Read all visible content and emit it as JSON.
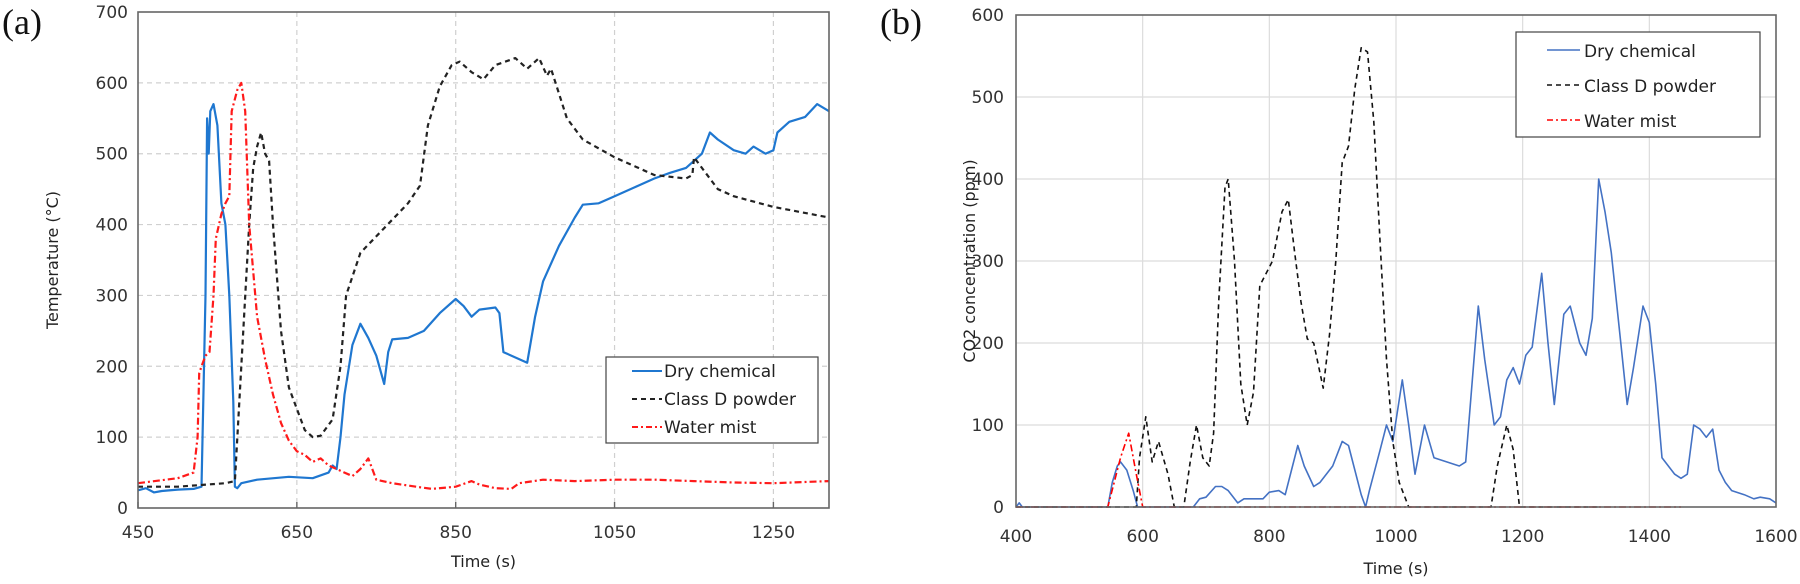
{
  "chart_data": [
    {
      "panel_label": "(a)",
      "type": "line",
      "title": "",
      "xlabel": "Time (s)",
      "ylabel": "Temperature (°C)",
      "xlim": [
        450,
        1320
      ],
      "ylim": [
        0,
        700
      ],
      "xticks": [
        450,
        650,
        850,
        1050,
        1250
      ],
      "yticks": [
        0,
        100,
        200,
        300,
        400,
        500,
        600,
        700
      ],
      "xtick_labels": [
        "450",
        "650",
        "850",
        "1050",
        "1250"
      ],
      "ytick_labels": [
        "0",
        "100",
        "200",
        "300",
        "400",
        "500",
        "600",
        "700"
      ],
      "grid": "dashed",
      "legend_position": "lower-right",
      "series": [
        {
          "name": "Dry chemical",
          "color": "#1f77d0",
          "style": "solid",
          "x": [
            450,
            460,
            470,
            480,
            500,
            520,
            530,
            535,
            537,
            539,
            541,
            545,
            550,
            555,
            560,
            565,
            570,
            572,
            575,
            580,
            600,
            640,
            670,
            690,
            695,
            700,
            705,
            710,
            720,
            730,
            740,
            750,
            760,
            765,
            770,
            790,
            810,
            830,
            850,
            860,
            870,
            880,
            900,
            905,
            910,
            940,
            950,
            960,
            980,
            1000,
            1010,
            1030,
            1050,
            1080,
            1100,
            1120,
            1140,
            1150,
            1160,
            1170,
            1180,
            1200,
            1215,
            1225,
            1240,
            1250,
            1255,
            1270,
            1290,
            1305,
            1320
          ],
          "y": [
            25,
            28,
            22,
            24,
            26,
            27,
            30,
            300,
            550,
            500,
            560,
            570,
            540,
            430,
            400,
            300,
            150,
            30,
            28,
            35,
            40,
            44,
            42,
            50,
            60,
            55,
            100,
            160,
            230,
            260,
            240,
            215,
            175,
            220,
            238,
            240,
            250,
            275,
            295,
            285,
            270,
            280,
            283,
            275,
            220,
            205,
            270,
            320,
            370,
            410,
            428,
            430,
            440,
            455,
            465,
            473,
            480,
            490,
            500,
            530,
            520,
            505,
            500,
            510,
            500,
            505,
            530,
            545,
            552,
            570,
            560
          ]
        },
        {
          "name": "Class D powder",
          "color": "#222222",
          "style": "dashed",
          "x": [
            450,
            500,
            560,
            572,
            580,
            590,
            595,
            600,
            605,
            610,
            615,
            620,
            630,
            640,
            660,
            670,
            680,
            695,
            705,
            712,
            730,
            760,
            790,
            805,
            815,
            830,
            845,
            855,
            870,
            885,
            900,
            925,
            940,
            955,
            965,
            970,
            990,
            1010,
            1050,
            1100,
            1140,
            1148,
            1150,
            1160,
            1180,
            1200,
            1250,
            1320
          ],
          "y": [
            30,
            30,
            35,
            38,
            200,
            400,
            480,
            510,
            530,
            500,
            490,
            400,
            250,
            170,
            110,
            100,
            102,
            125,
            200,
            300,
            360,
            395,
            430,
            455,
            540,
            595,
            625,
            630,
            615,
            605,
            625,
            635,
            620,
            635,
            610,
            620,
            550,
            520,
            495,
            470,
            465,
            470,
            495,
            480,
            450,
            440,
            425,
            410
          ]
        },
        {
          "name": "Water mist",
          "color": "#ff1a1a",
          "style": "dash-dot",
          "x": [
            450,
            500,
            520,
            525,
            527,
            530,
            535,
            540,
            545,
            548,
            551,
            555,
            560,
            565,
            568,
            575,
            580,
            585,
            590,
            600,
            610,
            620,
            630,
            640,
            650,
            660,
            670,
            680,
            690,
            700,
            710,
            720,
            730,
            740,
            750,
            770,
            800,
            820,
            850,
            870,
            880,
            900,
            920,
            930,
            960,
            1000,
            1050,
            1100,
            1150,
            1200,
            1250,
            1320
          ],
          "y": [
            35,
            42,
            50,
            100,
            190,
            200,
            215,
            220,
            300,
            380,
            395,
            415,
            430,
            440,
            560,
            590,
            600,
            560,
            400,
            270,
            210,
            160,
            120,
            95,
            80,
            75,
            65,
            70,
            60,
            55,
            50,
            45,
            55,
            70,
            40,
            35,
            30,
            27,
            30,
            38,
            33,
            28,
            27,
            35,
            40,
            38,
            40,
            40,
            38,
            36,
            35,
            38
          ]
        }
      ]
    },
    {
      "panel_label": "(b)",
      "type": "line",
      "title": "",
      "xlabel": "Time (s)",
      "ylabel": "CO2 concentration (ppm)",
      "xlim": [
        400,
        1600
      ],
      "ylim": [
        0,
        600
      ],
      "xticks": [
        400,
        600,
        800,
        1000,
        1200,
        1400,
        1600
      ],
      "yticks": [
        0,
        100,
        200,
        300,
        400,
        500,
        600
      ],
      "xtick_labels": [
        "400",
        "600",
        "800",
        "1000",
        "1200",
        "1400",
        "1600"
      ],
      "ytick_labels": [
        "0",
        "100",
        "200",
        "300",
        "400",
        "500",
        "600"
      ],
      "grid": "solid",
      "legend_position": "top-right",
      "series": [
        {
          "name": "Dry chemical",
          "color": "#4472c4",
          "style": "solid",
          "x": [
            400,
            405,
            410,
            545,
            552,
            560,
            565,
            575,
            585,
            592,
            680,
            690,
            700,
            715,
            725,
            735,
            750,
            760,
            790,
            800,
            815,
            825,
            845,
            855,
            870,
            880,
            900,
            915,
            925,
            945,
            952,
            958,
            975,
            985,
            995,
            1010,
            1020,
            1030,
            1045,
            1060,
            1080,
            1100,
            1110,
            1130,
            1140,
            1155,
            1165,
            1175,
            1185,
            1195,
            1205,
            1215,
            1230,
            1240,
            1250,
            1265,
            1275,
            1290,
            1300,
            1310,
            1320,
            1330,
            1340,
            1355,
            1365,
            1375,
            1390,
            1400,
            1410,
            1420,
            1440,
            1450,
            1460,
            1470,
            1480,
            1490,
            1500,
            1510,
            1520,
            1530,
            1550,
            1565,
            1575,
            1590,
            1600
          ],
          "y": [
            0,
            5,
            0,
            0,
            30,
            50,
            55,
            45,
            20,
            0,
            0,
            10,
            12,
            25,
            25,
            20,
            5,
            10,
            10,
            18,
            20,
            15,
            75,
            50,
            25,
            30,
            50,
            80,
            75,
            15,
            0,
            20,
            70,
            100,
            80,
            155,
            100,
            40,
            100,
            60,
            55,
            50,
            55,
            245,
            180,
            100,
            110,
            155,
            170,
            150,
            185,
            195,
            285,
            200,
            125,
            235,
            245,
            200,
            185,
            230,
            400,
            360,
            310,
            200,
            125,
            170,
            245,
            225,
            150,
            60,
            40,
            35,
            40,
            100,
            95,
            85,
            95,
            45,
            30,
            20,
            15,
            10,
            12,
            10,
            5
          ]
        },
        {
          "name": "Class D powder",
          "color": "#111111",
          "style": "dashed",
          "x": [
            400,
            590,
            595,
            605,
            615,
            625,
            640,
            650,
            665,
            675,
            685,
            695,
            705,
            712,
            720,
            730,
            735,
            745,
            755,
            765,
            775,
            785,
            795,
            805,
            820,
            830,
            840,
            850,
            860,
            870,
            885,
            895,
            905,
            915,
            925,
            935,
            945,
            955,
            965,
            975,
            985,
            995,
            1005,
            1020,
            1150,
            1160,
            1175,
            1185,
            1195,
            1320
          ],
          "y": [
            0,
            0,
            60,
            110,
            55,
            80,
            40,
            0,
            0,
            55,
            100,
            60,
            50,
            90,
            250,
            390,
            400,
            300,
            150,
            100,
            140,
            270,
            285,
            300,
            360,
            375,
            310,
            250,
            205,
            200,
            145,
            210,
            300,
            420,
            440,
            510,
            560,
            555,
            470,
            320,
            180,
            80,
            30,
            0,
            0,
            50,
            100,
            70,
            0,
            0
          ]
        },
        {
          "name": "Water mist",
          "color": "#ff0000",
          "style": "dash-dot",
          "x": [
            400,
            545,
            555,
            565,
            578,
            590,
            600,
            1450
          ],
          "y": [
            0,
            0,
            30,
            60,
            90,
            40,
            0,
            0
          ]
        }
      ]
    }
  ]
}
